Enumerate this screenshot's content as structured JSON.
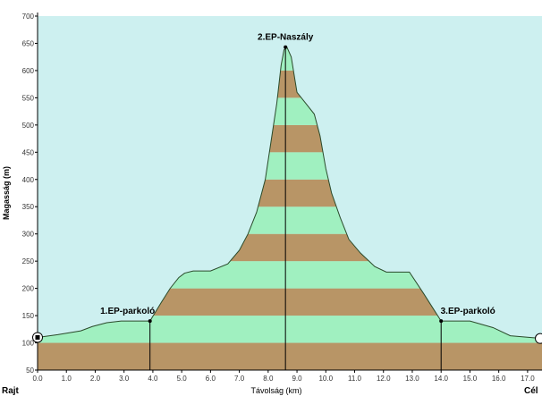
{
  "chart_data": {
    "type": "area",
    "xlabel": "Távolság  (km)",
    "ylabel": "Magasság (m)",
    "xlim": [
      0,
      17.5
    ],
    "ylim": [
      50,
      700
    ],
    "x_ticks": [
      0,
      1,
      2,
      3,
      4,
      5,
      6,
      7,
      8,
      9,
      10,
      11,
      12,
      13,
      14,
      15,
      16,
      17
    ],
    "x_tick_labels": [
      "0.0",
      "1.0",
      "2.0",
      "3.0",
      "4.0",
      "5.0",
      "6.0",
      "7.0",
      "8.0",
      "9.0",
      "10.0",
      "11.0",
      "12.0",
      "13.0",
      "14.0",
      "15.0",
      "16.0",
      "17.0"
    ],
    "y_ticks": [
      50,
      100,
      150,
      200,
      250,
      300,
      350,
      400,
      450,
      500,
      550,
      600,
      650,
      700
    ],
    "y_tick_labels": [
      "50",
      "100",
      "150",
      "200",
      "250",
      "300",
      "350",
      "400",
      "450",
      "500",
      "550",
      "600",
      "650",
      "700"
    ],
    "band_height_m": 50,
    "grid": false,
    "colors": {
      "background": "#cdf0f0",
      "band_green": "#a0f0c0",
      "band_brown": "#b89566",
      "profile_line": "#2a4a2a",
      "axis": "#000000"
    },
    "profile": {
      "x": [
        0.0,
        0.7,
        1.5,
        1.9,
        2.4,
        2.9,
        3.9,
        4.3,
        4.6,
        4.9,
        5.1,
        5.4,
        6.0,
        6.6,
        7.0,
        7.3,
        7.6,
        7.9,
        8.1,
        8.3,
        8.45,
        8.55,
        8.65,
        8.8,
        9.0,
        9.3,
        9.6,
        9.8,
        10.0,
        10.2,
        10.5,
        10.8,
        11.2,
        11.7,
        12.1,
        12.9,
        13.4,
        13.7,
        14.0,
        15.0,
        15.8,
        16.4,
        17.5
      ],
      "y": [
        110,
        115,
        122,
        130,
        137,
        140,
        140,
        175,
        200,
        220,
        228,
        232,
        232,
        245,
        270,
        300,
        340,
        400,
        470,
        540,
        610,
        638,
        643,
        625,
        560,
        540,
        520,
        480,
        420,
        375,
        330,
        290,
        265,
        240,
        230,
        230,
        190,
        165,
        140,
        140,
        128,
        113,
        108
      ]
    },
    "waypoints": [
      {
        "label": "1.EP-parkoló",
        "x": 3.9,
        "y": 140
      },
      {
        "label": "2.EP-Naszály",
        "x": 8.6,
        "y": 643
      },
      {
        "label": "3.EP-parkoló",
        "x": 14.0,
        "y": 140
      }
    ],
    "start_label": "Rajt",
    "end_label": "Cél"
  }
}
